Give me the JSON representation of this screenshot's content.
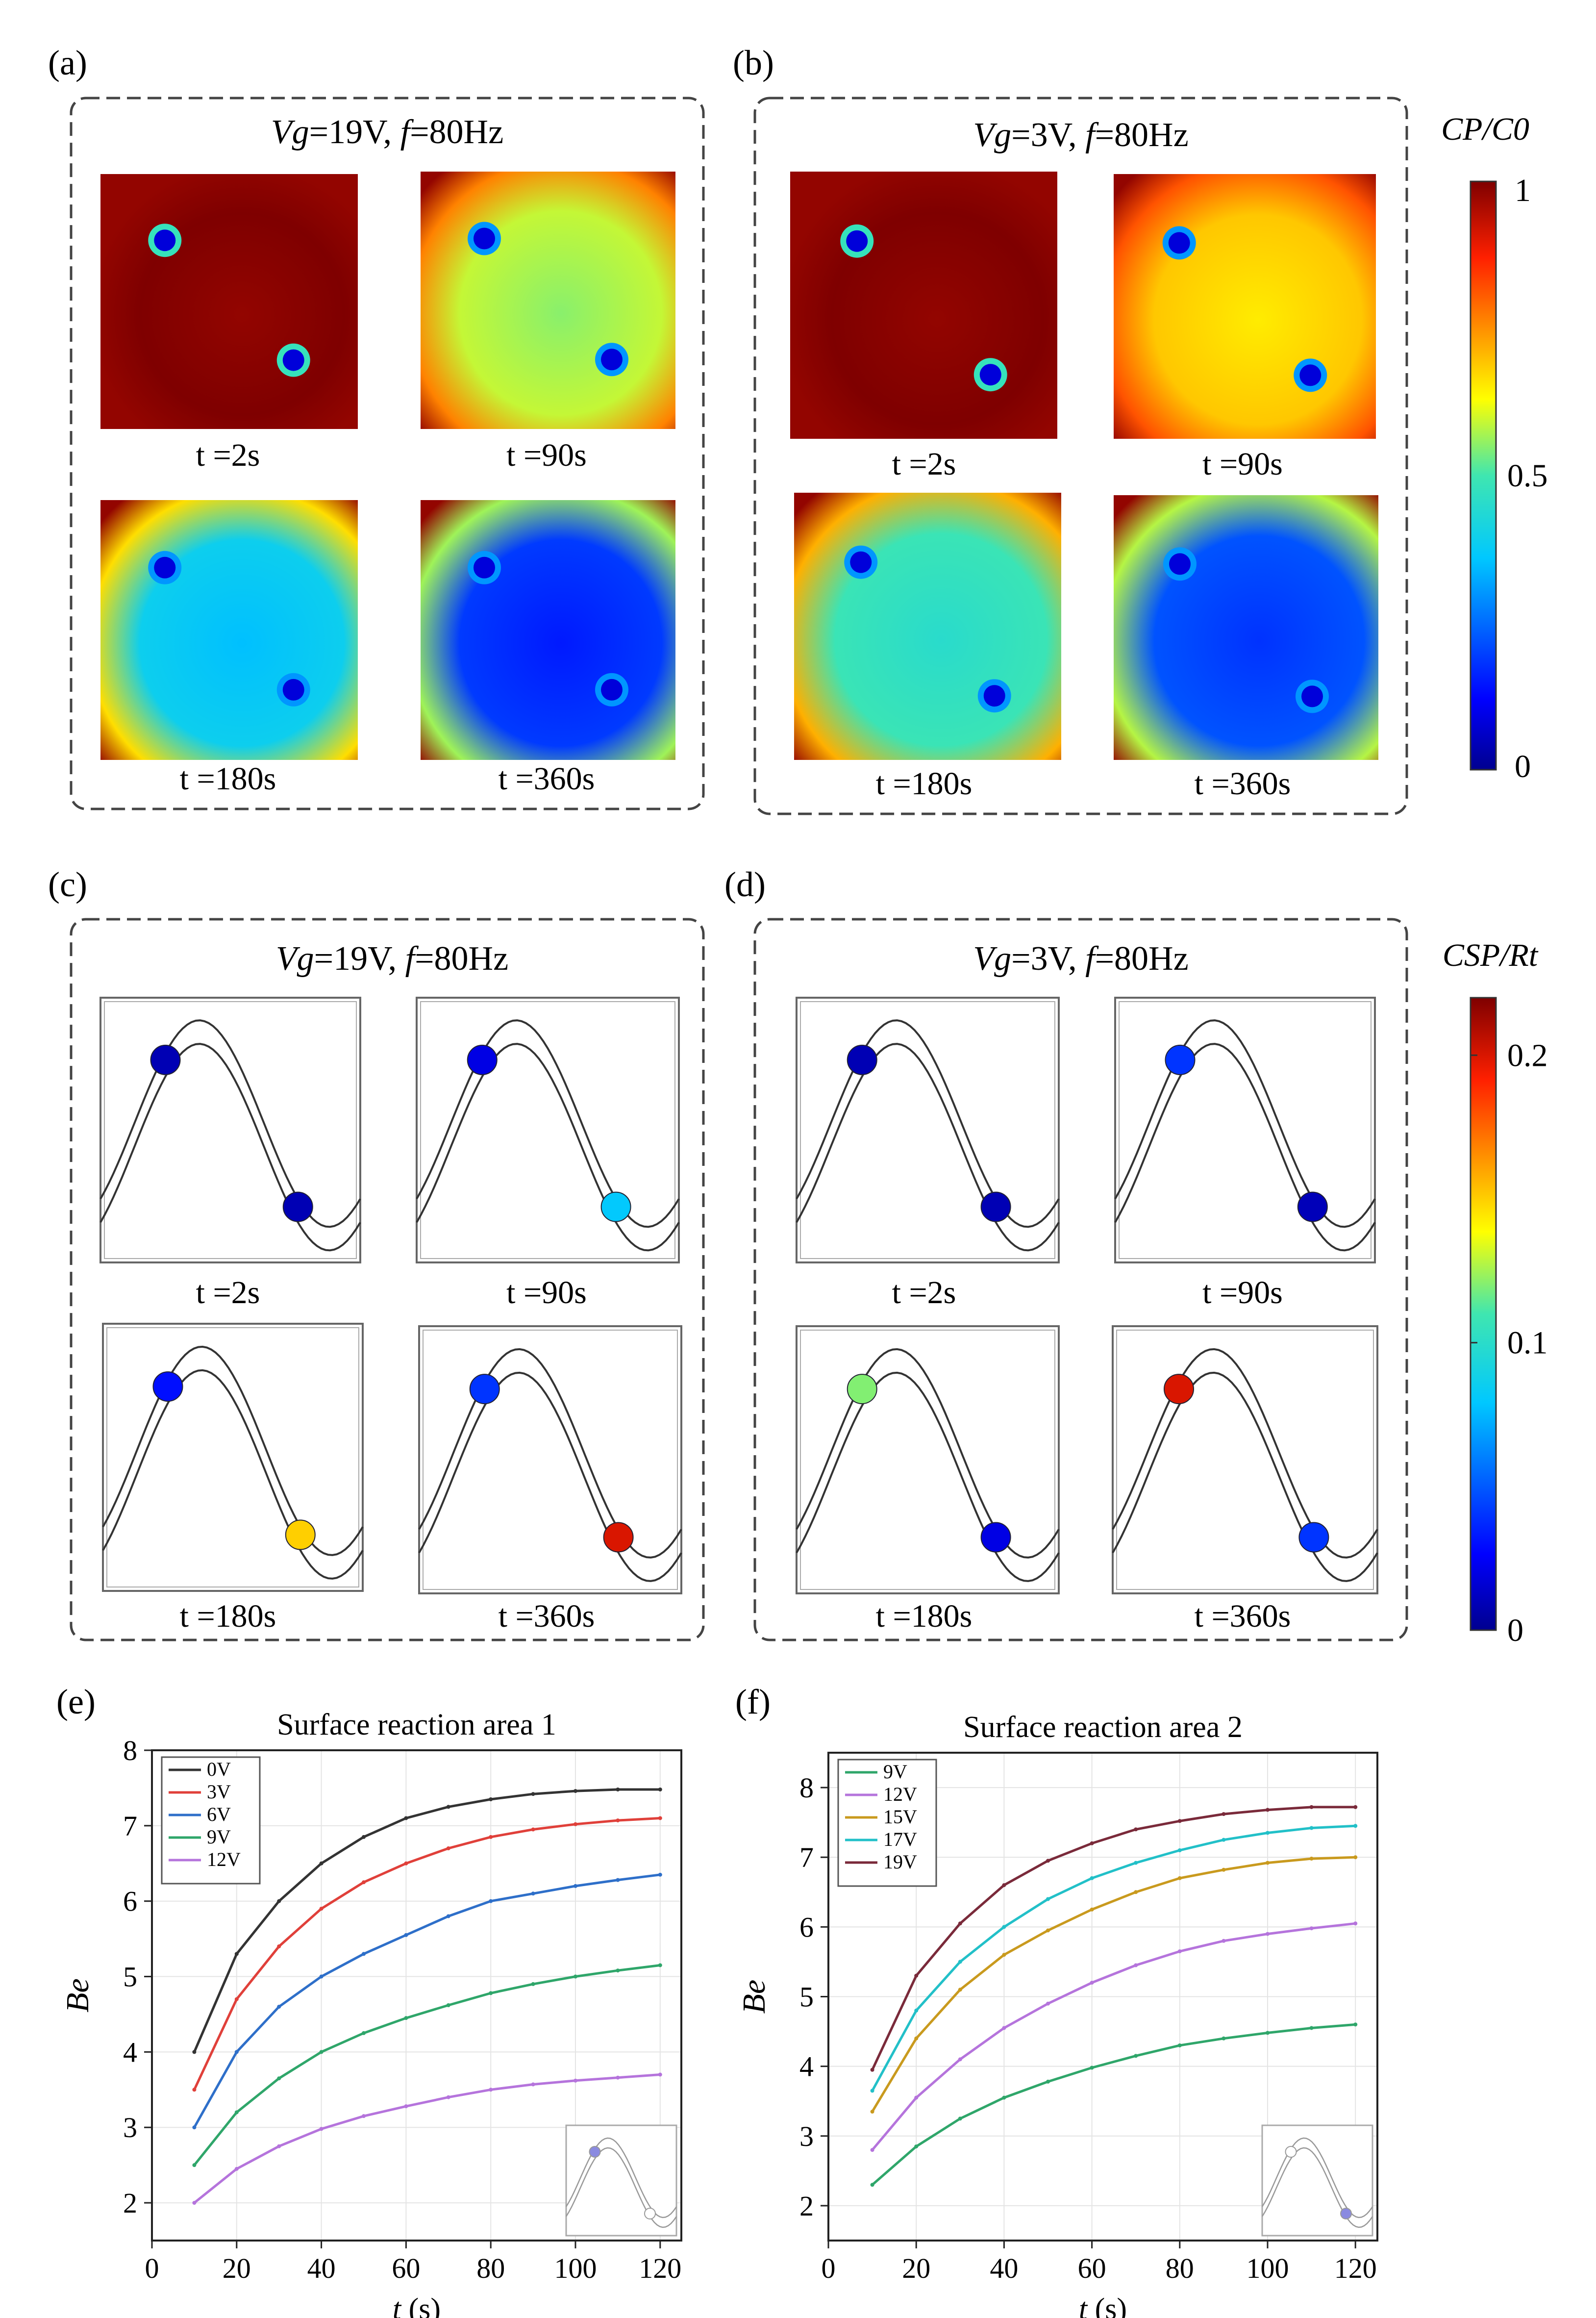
{
  "panels": {
    "a": {
      "letter": "(a)",
      "condition": "Vg=19V, f=80Hz",
      "vg": "19V",
      "f": "80Hz",
      "times": [
        "t =2s",
        "t =90s",
        "t =180s",
        "t =360s"
      ],
      "map_levels": [
        0.98,
        0.55,
        0.35,
        0.15
      ]
    },
    "b": {
      "letter": "(b)",
      "condition": "Vg=3V, f=80Hz",
      "vg": "3V",
      "f": "80Hz",
      "times": [
        "t =2s",
        "t =90s",
        "t =180s",
        "t =360s"
      ],
      "map_levels": [
        0.98,
        0.65,
        0.45,
        0.18
      ]
    },
    "c": {
      "letter": "(c)",
      "condition": "Vg=19V, f=80Hz",
      "vg": "19V",
      "f": "80Hz",
      "times": [
        "t =2s",
        "t =90s",
        "t =180s",
        "t =360s"
      ],
      "particle_levels": [
        [
          0.0,
          0.0
        ],
        [
          0.02,
          0.08
        ],
        [
          0.03,
          0.15
        ],
        [
          0.04,
          0.2
        ]
      ]
    },
    "d": {
      "letter": "(d)",
      "condition": "Vg=3V, f=80Hz",
      "vg": "3V",
      "f": "80Hz",
      "times": [
        "t =2s",
        "t =90s",
        "t =180s",
        "t =360s"
      ],
      "particle_levels": [
        [
          0.0,
          0.0
        ],
        [
          0.04,
          0.01
        ],
        [
          0.12,
          0.02
        ],
        [
          0.2,
          0.04
        ]
      ]
    },
    "e": {
      "letter": "(e)"
    },
    "f": {
      "letter": "(f)"
    }
  },
  "colorbar_top": {
    "label": "CP/C0",
    "ticks": [
      "1",
      "0.5",
      "0"
    ],
    "tick_values": [
      1,
      0.5,
      0
    ]
  },
  "colorbar_bottom": {
    "label": "CSP/Rt",
    "ticks": [
      "0.2",
      "0.1",
      "0"
    ],
    "tick_values": [
      0.2,
      0.1,
      0
    ],
    "max": 0.22
  },
  "colors": {
    "curve_0V": "#333333",
    "curve_3V": "#e0403a",
    "curve_6V": "#2e6fc9",
    "curve_9V": "#2fa66a",
    "curve_12V": "#b574dc",
    "curve_15V": "#c99a1e",
    "curve_17V": "#22c0c8",
    "curve_19V": "#7a2a3a"
  },
  "chart_data": [
    {
      "type": "line",
      "title": "Surface reaction area 1",
      "xlabel": "t (s)",
      "ylabel": "Be",
      "xlim": [
        0,
        125
      ],
      "ylim": [
        1.5,
        8
      ],
      "xticks": [
        0,
        20,
        40,
        60,
        80,
        100,
        120
      ],
      "yticks": [
        2,
        3,
        4,
        5,
        6,
        7,
        8
      ],
      "x": [
        10,
        20,
        30,
        40,
        50,
        60,
        70,
        80,
        90,
        100,
        110,
        120
      ],
      "series": [
        {
          "name": "0V",
          "color": "#333333",
          "values": [
            4.0,
            5.3,
            6.0,
            6.5,
            6.85,
            7.1,
            7.25,
            7.35,
            7.42,
            7.46,
            7.48,
            7.48
          ]
        },
        {
          "name": "3V",
          "color": "#e0403a",
          "values": [
            3.5,
            4.7,
            5.4,
            5.9,
            6.25,
            6.5,
            6.7,
            6.85,
            6.95,
            7.02,
            7.07,
            7.1
          ]
        },
        {
          "name": "6V",
          "color": "#2e6fc9",
          "values": [
            3.0,
            4.0,
            4.6,
            5.0,
            5.3,
            5.55,
            5.8,
            6.0,
            6.1,
            6.2,
            6.28,
            6.35
          ]
        },
        {
          "name": "9V",
          "color": "#2fa66a",
          "values": [
            2.5,
            3.2,
            3.65,
            4.0,
            4.25,
            4.45,
            4.62,
            4.78,
            4.9,
            5.0,
            5.08,
            5.15
          ]
        },
        {
          "name": "12V",
          "color": "#b574dc",
          "values": [
            2.0,
            2.45,
            2.75,
            2.98,
            3.15,
            3.28,
            3.4,
            3.5,
            3.57,
            3.62,
            3.66,
            3.7
          ]
        }
      ],
      "legend": "top-left",
      "inset_highlight": "top particle"
    },
    {
      "type": "line",
      "title": "Surface reaction area 2",
      "xlabel": "t (s)",
      "ylabel": "Be",
      "xlim": [
        0,
        125
      ],
      "ylim": [
        1.5,
        8.5
      ],
      "xticks": [
        0,
        20,
        40,
        60,
        80,
        100,
        120
      ],
      "yticks": [
        2,
        3,
        4,
        5,
        6,
        7,
        8
      ],
      "x": [
        10,
        20,
        30,
        40,
        50,
        60,
        70,
        80,
        90,
        100,
        110,
        120
      ],
      "series": [
        {
          "name": "9V",
          "color": "#2fa66a",
          "values": [
            2.3,
            2.85,
            3.25,
            3.55,
            3.78,
            3.98,
            4.15,
            4.3,
            4.4,
            4.48,
            4.55,
            4.6
          ]
        },
        {
          "name": "12V",
          "color": "#b574dc",
          "values": [
            2.8,
            3.55,
            4.1,
            4.55,
            4.9,
            5.2,
            5.45,
            5.65,
            5.8,
            5.9,
            5.98,
            6.05
          ]
        },
        {
          "name": "15V",
          "color": "#c99a1e",
          "values": [
            3.35,
            4.4,
            5.1,
            5.6,
            5.95,
            6.25,
            6.5,
            6.7,
            6.82,
            6.92,
            6.98,
            7.0
          ]
        },
        {
          "name": "17V",
          "color": "#22c0c8",
          "values": [
            3.65,
            4.8,
            5.5,
            6.0,
            6.4,
            6.7,
            6.92,
            7.1,
            7.25,
            7.35,
            7.42,
            7.45
          ]
        },
        {
          "name": "19V",
          "color": "#7a2a3a",
          "values": [
            3.95,
            5.3,
            6.05,
            6.6,
            6.95,
            7.2,
            7.4,
            7.52,
            7.62,
            7.68,
            7.72,
            7.72
          ]
        }
      ],
      "legend": "top-left",
      "inset_highlight": "bottom particle"
    }
  ]
}
